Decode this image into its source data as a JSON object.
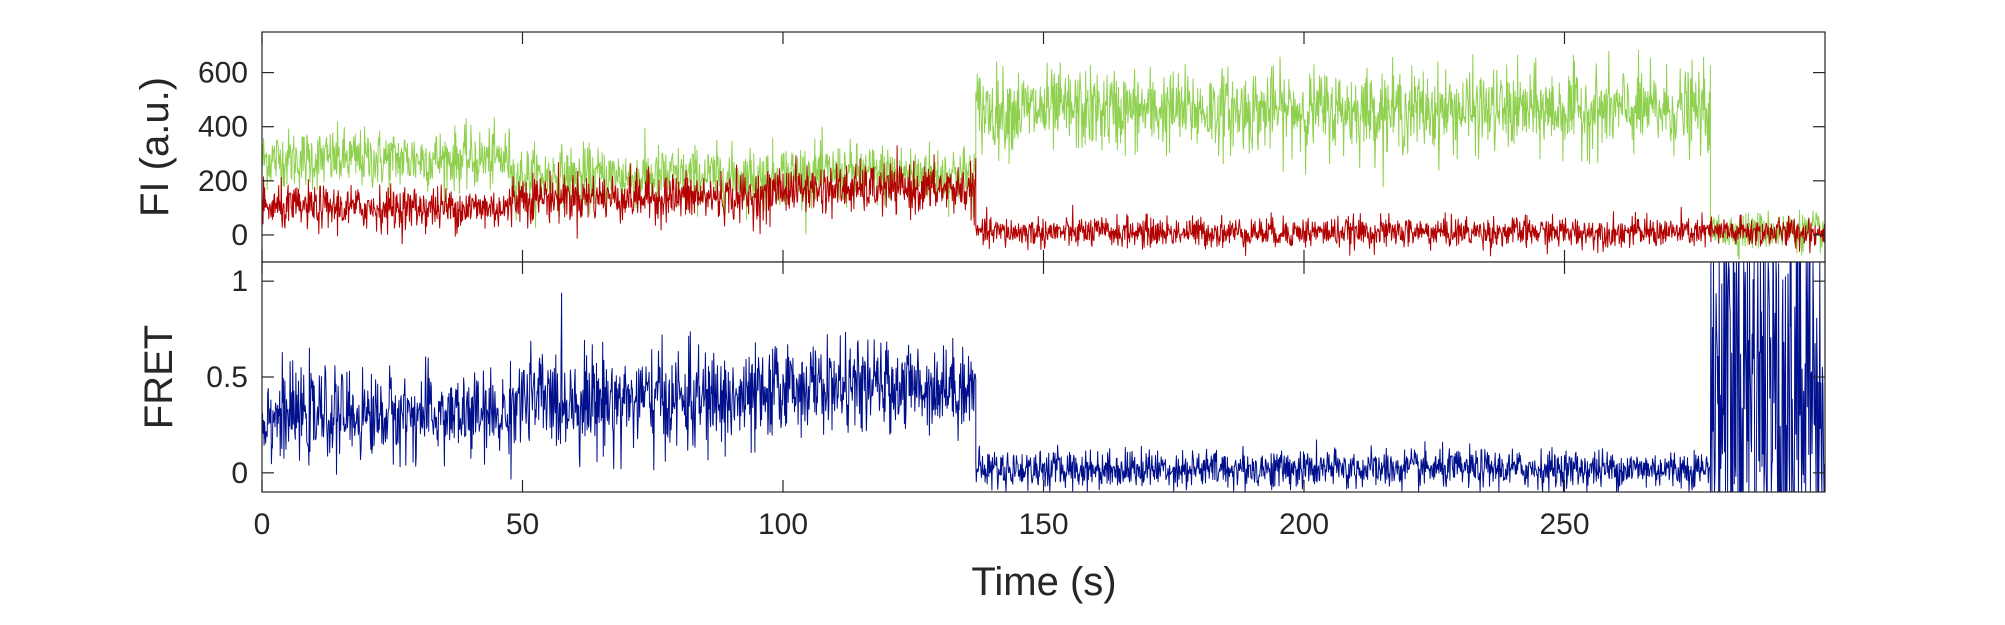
{
  "chart_data": [
    {
      "type": "line",
      "panel": "top",
      "ylabel": "FI (a.u.)",
      "xlabel": "",
      "xlim": [
        0,
        300
      ],
      "ylim": [
        -100,
        750
      ],
      "yticks": [
        0,
        200,
        400,
        600
      ],
      "ytick_labels": [
        "0",
        "200",
        "400",
        "600"
      ],
      "grid": false,
      "legend": "none",
      "series": [
        {
          "color": "#8fd14f",
          "segments": [
            {
              "x0": 0,
              "x1": 48,
              "mean": 280,
              "noise": 55
            },
            {
              "x0": 48,
              "x1": 98,
              "mean": 215,
              "noise": 55
            },
            {
              "x0": 98,
              "x1": 137,
              "mean": 225,
              "noise": 55
            },
            {
              "x0": 137,
              "x1": 278,
              "mean": 460,
              "noise": 75
            },
            {
              "x0": 278,
              "x1": 300,
              "mean": 15,
              "noise": 35
            }
          ]
        },
        {
          "color": "#b30000",
          "segments": [
            {
              "x0": 0,
              "x1": 48,
              "mean": 100,
              "noise": 40
            },
            {
              "x0": 48,
              "x1": 98,
              "mean": 140,
              "noise": 45
            },
            {
              "x0": 98,
              "x1": 137,
              "mean": 170,
              "noise": 45
            },
            {
              "x0": 137,
              "x1": 300,
              "mean": 10,
              "noise": 28
            }
          ]
        }
      ]
    },
    {
      "type": "line",
      "panel": "bottom",
      "ylabel": "FRET",
      "xlabel": "Time (s)",
      "xlim": [
        0,
        300
      ],
      "ylim": [
        -0.1,
        1.1
      ],
      "yticks": [
        0,
        0.5,
        1
      ],
      "ytick_labels": [
        "0",
        "0.5",
        "1"
      ],
      "xticks": [
        0,
        50,
        100,
        150,
        200,
        250
      ],
      "xtick_labels": [
        "0",
        "50",
        "100",
        "150",
        "200",
        "250"
      ],
      "grid": false,
      "legend": "none",
      "series": [
        {
          "color": "#000f8c",
          "segments": [
            {
              "x0": 0,
              "x1": 48,
              "mean": 0.3,
              "noise": 0.11
            },
            {
              "x0": 48,
              "x1": 98,
              "mean": 0.38,
              "noise": 0.13
            },
            {
              "x0": 98,
              "x1": 137,
              "mean": 0.45,
              "noise": 0.11
            },
            {
              "x0": 137,
              "x1": 278,
              "mean": 0.02,
              "noise": 0.05
            },
            {
              "x0": 278,
              "x1": 300,
              "mean": 0.5,
              "noise": 0.8
            }
          ]
        }
      ]
    }
  ]
}
